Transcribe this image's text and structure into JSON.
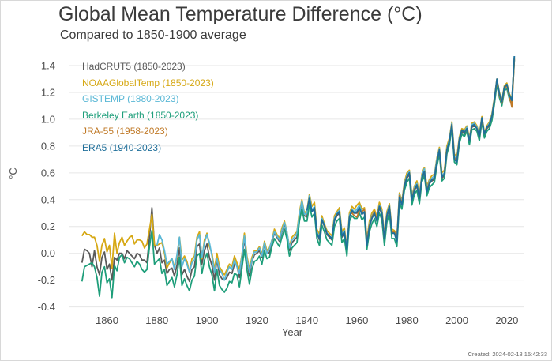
{
  "chart_data": {
    "type": "line",
    "title": "Global Mean Temperature Difference (°C)",
    "subtitle": "Compared to 1850-1900 average",
    "ylabel": "°C",
    "xlabel": "Year",
    "footer": "Created: 2024-02-18 15:42:33",
    "xlim": [
      1845,
      2027
    ],
    "ylim": [
      -0.42,
      1.5
    ],
    "yticks": [
      -0.4,
      -0.2,
      0.0,
      0.2,
      0.4,
      0.6,
      0.8,
      1.0,
      1.2,
      1.4
    ],
    "yticklabels": [
      "-0.4",
      "-0.2",
      "0.0",
      "0.2",
      "0.4",
      "0.6",
      "0.8",
      "1.0",
      "1.2",
      "1.4"
    ],
    "xticks": [
      1860,
      1880,
      1900,
      1920,
      1940,
      1960,
      1980,
      2000,
      2020
    ],
    "xticklabels": [
      "1860",
      "1880",
      "1900",
      "1920",
      "1940",
      "1960",
      "1980",
      "2000",
      "2020"
    ],
    "grid": "horizontal",
    "legend_position": "top-left",
    "series": [
      {
        "name": "HadCRUT5 (1850-2023)",
        "color": "#5a5a5a",
        "x_start": 1850,
        "values": [
          -0.07,
          0.03,
          0.02,
          0.0,
          -0.1,
          0.02,
          -0.1,
          -0.16,
          -0.03,
          0.01,
          -0.12,
          -0.08,
          -0.2,
          -0.03,
          -0.05,
          0.0,
          0.0,
          -0.04,
          0.02,
          0.0,
          -0.02,
          -0.04,
          0.0,
          -0.01,
          -0.05,
          -0.05,
          -0.07,
          0.12,
          0.34,
          0.06,
          0.0,
          0.04,
          -0.07,
          -0.05,
          -0.15,
          -0.12,
          -0.11,
          -0.17,
          -0.09,
          0.04,
          -0.16,
          -0.12,
          -0.17,
          -0.21,
          -0.12,
          -0.1,
          0.05,
          0.07,
          -0.08,
          0.02,
          0.07,
          -0.03,
          -0.09,
          -0.2,
          -0.04,
          -0.16,
          -0.19,
          -0.2,
          -0.18,
          -0.14,
          -0.15,
          -0.08,
          -0.09,
          -0.18,
          -0.04,
          0.11,
          -0.05,
          -0.17,
          -0.06,
          -0.01,
          0.0,
          0.02,
          -0.03,
          0.07,
          0.01,
          0.0,
          0.09,
          0.15,
          0.12,
          0.09,
          0.16,
          0.22,
          0.15,
          0.02,
          0.08,
          0.1,
          0.12,
          0.28,
          0.38,
          0.28,
          0.27,
          0.4,
          0.31,
          0.34,
          0.15,
          0.1,
          0.25,
          0.2,
          0.14,
          0.12,
          0.1,
          0.24,
          0.28,
          0.3,
          0.12,
          0.15,
          0.02,
          0.27,
          0.31,
          0.3,
          0.3,
          0.34,
          0.29,
          0.31,
          0.07,
          0.2,
          0.26,
          0.3,
          0.24,
          0.34,
          0.29,
          0.1,
          0.27,
          0.34,
          0.15,
          0.15,
          0.09,
          0.42,
          0.36,
          0.5,
          0.56,
          0.59,
          0.39,
          0.47,
          0.5,
          0.4,
          0.55,
          0.6,
          0.46,
          0.52,
          0.54,
          0.55,
          0.67,
          0.76,
          0.56,
          0.58,
          0.76,
          0.83,
          0.95,
          0.7,
          0.68,
          0.84,
          0.91,
          0.89,
          0.93,
          0.83,
          0.94,
          0.95,
          0.93,
          0.86,
          1.0,
          0.88,
          0.93,
          0.95,
          1.01,
          1.13,
          1.28,
          1.18,
          1.12,
          1.23,
          1.25,
          1.17,
          1.13,
          1.45
        ]
      },
      {
        "name": "NOAAGlobalTemp (1850-2023)",
        "color": "#d6a814",
        "x_start": 1850,
        "values": [
          0.13,
          0.16,
          0.14,
          0.14,
          0.12,
          0.12,
          0.06,
          -0.06,
          0.06,
          0.11,
          0.01,
          0.06,
          -0.11,
          0.15,
          0.0,
          0.08,
          0.12,
          0.06,
          0.09,
          0.12,
          0.13,
          0.07,
          0.1,
          0.1,
          0.09,
          0.04,
          0.07,
          0.18,
          0.29,
          0.06,
          0.06,
          0.07,
          0.08,
          0.0,
          -0.11,
          -0.07,
          -0.04,
          -0.1,
          -0.03,
          0.12,
          -0.05,
          -0.02,
          -0.06,
          -0.14,
          -0.04,
          -0.02,
          0.12,
          0.16,
          -0.04,
          0.1,
          0.15,
          0.05,
          0.0,
          -0.12,
          0.0,
          -0.1,
          -0.13,
          -0.16,
          -0.12,
          -0.08,
          -0.1,
          -0.02,
          -0.07,
          -0.12,
          -0.01,
          0.15,
          -0.02,
          -0.12,
          -0.03,
          0.02,
          0.02,
          0.05,
          -0.01,
          0.09,
          0.02,
          0.04,
          0.1,
          0.18,
          0.14,
          0.11,
          0.19,
          0.24,
          0.16,
          0.05,
          0.12,
          0.14,
          0.16,
          0.31,
          0.4,
          0.3,
          0.32,
          0.44,
          0.35,
          0.38,
          0.18,
          0.14,
          0.28,
          0.22,
          0.17,
          0.15,
          0.13,
          0.28,
          0.31,
          0.34,
          0.16,
          0.19,
          0.05,
          0.3,
          0.35,
          0.33,
          0.36,
          0.38,
          0.33,
          0.34,
          0.1,
          0.24,
          0.3,
          0.33,
          0.27,
          0.38,
          0.33,
          0.14,
          0.31,
          0.37,
          0.18,
          0.17,
          0.12,
          0.45,
          0.39,
          0.53,
          0.6,
          0.62,
          0.43,
          0.5,
          0.54,
          0.44,
          0.59,
          0.64,
          0.5,
          0.55,
          0.58,
          0.59,
          0.71,
          0.79,
          0.6,
          0.62,
          0.8,
          0.86,
          0.98,
          0.74,
          0.72,
          0.87,
          0.93,
          0.92,
          0.95,
          0.86,
          0.97,
          0.98,
          0.95,
          0.89,
          1.02,
          0.9,
          0.95,
          0.98,
          1.04,
          1.16,
          1.3,
          1.2,
          1.14,
          1.25,
          1.27,
          1.19,
          1.15,
          1.46
        ]
      },
      {
        "name": "GISTEMP (1880-2023)",
        "color": "#5bb8d6",
        "x_start": 1880,
        "values": [
          0.06,
          0.14,
          0.1,
          0.02,
          -0.08,
          -0.06,
          -0.04,
          -0.12,
          -0.01,
          0.12,
          -0.1,
          -0.04,
          -0.08,
          -0.14,
          -0.07,
          -0.05,
          0.1,
          0.14,
          -0.03,
          0.08,
          0.14,
          0.08,
          -0.02,
          -0.14,
          -0.04,
          -0.12,
          -0.15,
          -0.2,
          -0.14,
          -0.1,
          -0.12,
          -0.05,
          -0.1,
          -0.15,
          -0.02,
          0.13,
          -0.04,
          -0.14,
          -0.05,
          0.01,
          0.01,
          0.04,
          -0.02,
          0.08,
          0.0,
          0.03,
          0.1,
          0.16,
          0.13,
          0.1,
          0.17,
          0.23,
          0.16,
          0.04,
          0.1,
          0.12,
          0.15,
          0.29,
          0.39,
          0.29,
          0.3,
          0.43,
          0.32,
          0.35,
          0.16,
          0.12,
          0.26,
          0.21,
          0.15,
          0.13,
          0.11,
          0.26,
          0.3,
          0.32,
          0.14,
          0.17,
          0.03,
          0.28,
          0.33,
          0.31,
          0.33,
          0.36,
          0.31,
          0.33,
          0.08,
          0.22,
          0.28,
          0.31,
          0.25,
          0.36,
          0.31,
          0.12,
          0.29,
          0.36,
          0.16,
          0.16,
          0.1,
          0.44,
          0.38,
          0.52,
          0.58,
          0.61,
          0.42,
          0.49,
          0.52,
          0.42,
          0.58,
          0.63,
          0.48,
          0.54,
          0.56,
          0.58,
          0.7,
          0.78,
          0.58,
          0.6,
          0.78,
          0.85,
          0.97,
          0.72,
          0.7,
          0.86,
          0.92,
          0.91,
          0.94,
          0.85,
          0.96,
          0.97,
          0.94,
          0.88,
          1.01,
          0.89,
          0.94,
          0.97,
          1.03,
          1.15,
          1.29,
          1.19,
          1.13,
          1.24,
          1.26,
          1.18,
          1.14,
          1.47
        ]
      },
      {
        "name": "Berkeley Earth (1850-2023)",
        "color": "#1e9e7a",
        "x_start": 1850,
        "values": [
          -0.21,
          -0.1,
          -0.09,
          -0.08,
          -0.07,
          -0.1,
          -0.18,
          -0.32,
          -0.14,
          -0.1,
          -0.22,
          -0.19,
          -0.33,
          -0.09,
          -0.13,
          -0.03,
          -0.01,
          -0.07,
          -0.03,
          -0.04,
          -0.07,
          -0.1,
          -0.06,
          -0.08,
          -0.12,
          -0.14,
          -0.12,
          0.05,
          0.17,
          -0.08,
          -0.06,
          -0.04,
          -0.15,
          -0.12,
          -0.24,
          -0.21,
          -0.18,
          -0.25,
          -0.16,
          -0.03,
          -0.24,
          -0.19,
          -0.24,
          -0.28,
          -0.2,
          -0.17,
          -0.02,
          0.0,
          -0.15,
          -0.05,
          0.0,
          -0.1,
          -0.16,
          -0.28,
          -0.12,
          -0.24,
          -0.27,
          -0.29,
          -0.26,
          -0.21,
          -0.22,
          -0.15,
          -0.16,
          -0.25,
          -0.11,
          0.03,
          -0.12,
          -0.23,
          -0.12,
          -0.06,
          -0.05,
          -0.02,
          -0.08,
          0.02,
          -0.04,
          -0.03,
          0.05,
          0.11,
          0.08,
          0.05,
          0.12,
          0.18,
          0.11,
          -0.02,
          0.04,
          0.06,
          0.08,
          0.24,
          0.33,
          0.24,
          0.24,
          0.36,
          0.27,
          0.3,
          0.11,
          0.06,
          0.21,
          0.16,
          0.1,
          0.08,
          0.06,
          0.2,
          0.24,
          0.26,
          0.08,
          0.11,
          -0.02,
          0.24,
          0.28,
          0.26,
          0.26,
          0.3,
          0.25,
          0.27,
          0.03,
          0.16,
          0.22,
          0.26,
          0.2,
          0.3,
          0.25,
          0.06,
          0.23,
          0.3,
          0.11,
          0.11,
          0.05,
          0.38,
          0.33,
          0.47,
          0.53,
          0.56,
          0.36,
          0.44,
          0.47,
          0.37,
          0.53,
          0.58,
          0.43,
          0.49,
          0.51,
          0.53,
          0.65,
          0.74,
          0.54,
          0.56,
          0.74,
          0.81,
          0.93,
          0.68,
          0.66,
          0.82,
          0.89,
          0.87,
          0.91,
          0.81,
          0.92,
          0.93,
          0.91,
          0.84,
          0.98,
          0.86,
          0.91,
          0.93,
          0.99,
          1.11,
          1.26,
          1.16,
          1.1,
          1.21,
          1.23,
          1.15,
          1.11,
          1.44
        ]
      },
      {
        "name": "JRA-55 (1958-2023)",
        "color": "#c07a28",
        "x_start": 1958,
        "values": [
          0.3,
          0.28,
          0.27,
          0.32,
          0.31,
          0.33,
          0.08,
          0.21,
          0.27,
          0.31,
          0.25,
          0.35,
          0.3,
          0.11,
          0.28,
          0.35,
          0.16,
          0.16,
          0.1,
          0.43,
          0.37,
          0.51,
          0.57,
          0.6,
          0.41,
          0.48,
          0.51,
          0.41,
          0.56,
          0.61,
          0.47,
          0.53,
          0.55,
          0.56,
          0.68,
          0.77,
          0.57,
          0.59,
          0.77,
          0.84,
          0.96,
          0.71,
          0.69,
          0.85,
          0.92,
          0.9,
          0.93,
          0.84,
          0.95,
          0.96,
          0.93,
          0.87,
          1.0,
          0.89,
          0.94,
          0.96,
          1.02,
          1.14,
          1.29,
          1.18,
          1.12,
          1.23,
          1.25,
          1.17,
          1.09,
          1.45
        ]
      },
      {
        "name": "ERA5 (1940-2023)",
        "color": "#1f6f9a",
        "x_start": 1940,
        "values": [
          0.32,
          0.41,
          0.31,
          0.34,
          0.15,
          0.11,
          0.25,
          0.21,
          0.15,
          0.13,
          0.11,
          0.25,
          0.29,
          0.31,
          0.13,
          0.16,
          0.03,
          0.27,
          0.32,
          0.3,
          0.31,
          0.34,
          0.29,
          0.31,
          0.06,
          0.2,
          0.26,
          0.3,
          0.24,
          0.35,
          0.3,
          0.11,
          0.28,
          0.35,
          0.15,
          0.15,
          0.09,
          0.42,
          0.36,
          0.5,
          0.57,
          0.6,
          0.4,
          0.47,
          0.51,
          0.41,
          0.56,
          0.61,
          0.46,
          0.52,
          0.55,
          0.56,
          0.68,
          0.77,
          0.57,
          0.59,
          0.77,
          0.84,
          0.96,
          0.7,
          0.68,
          0.85,
          0.92,
          0.9,
          0.93,
          0.84,
          0.95,
          0.96,
          0.93,
          0.87,
          1.01,
          0.89,
          0.94,
          0.96,
          1.02,
          1.14,
          1.3,
          1.19,
          1.13,
          1.24,
          1.26,
          1.18,
          1.14,
          1.47
        ]
      }
    ]
  }
}
